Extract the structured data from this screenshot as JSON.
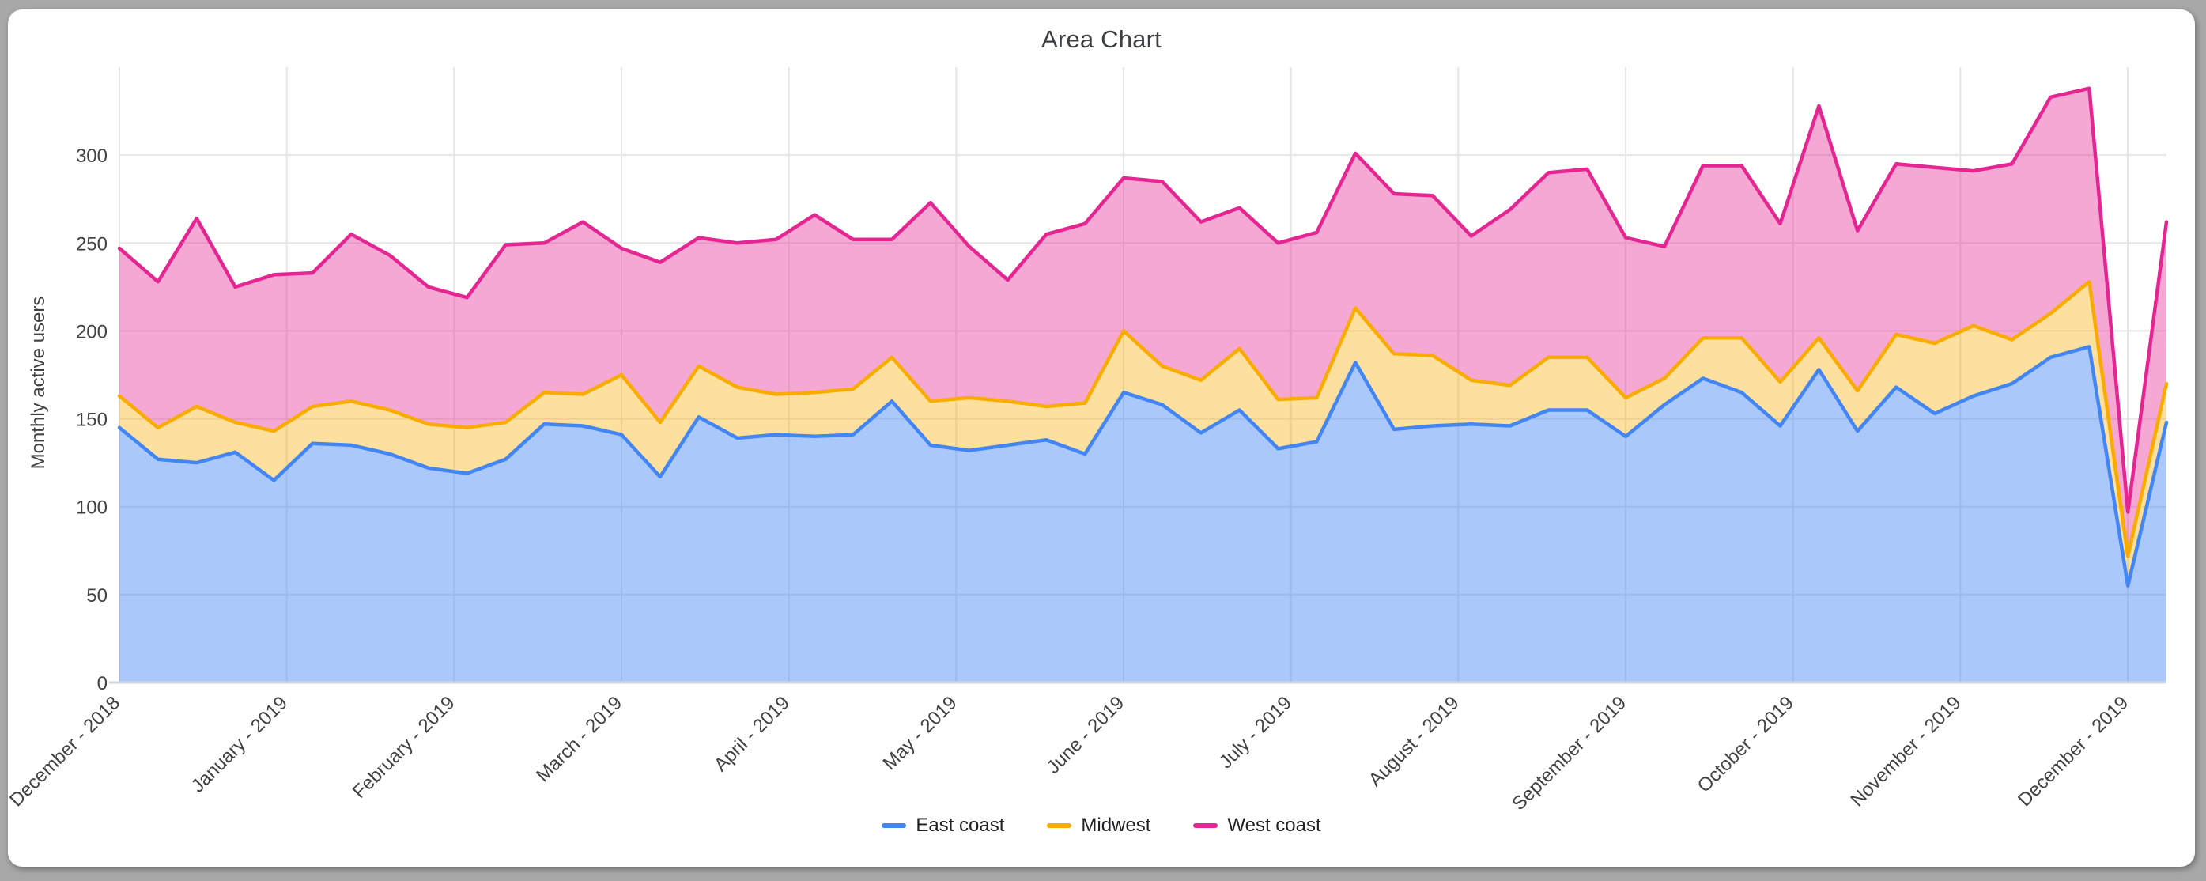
{
  "window": {
    "background_color": "#a8a8a8",
    "card_color": "#ffffff"
  },
  "chart_data": {
    "type": "area",
    "stacked": true,
    "title": "Area Chart",
    "xlabel": "",
    "ylabel": "Monthly active users",
    "grid": true,
    "legend_position": "bottom-center",
    "ylim": [
      0,
      350
    ],
    "yticks": [
      0,
      50,
      100,
      150,
      200,
      250,
      300
    ],
    "x_tick_labels": [
      "December - 2018",
      "January - 2019",
      "February - 2019",
      "March - 2019",
      "April - 2019",
      "May - 2019",
      "June - 2019",
      "July - 2019",
      "August - 2019",
      "September - 2019",
      "October - 2019",
      "November - 2019",
      "December - 2019"
    ],
    "points_per_week": true,
    "series": [
      {
        "name": "East coast",
        "color": "#4285F4",
        "fill_opacity": 0.45,
        "values": [
          145,
          127,
          125,
          131,
          115,
          136,
          135,
          130,
          122,
          119,
          127,
          147,
          146,
          141,
          117,
          151,
          139,
          141,
          140,
          141,
          160,
          135,
          132,
          135,
          138,
          130,
          165,
          158,
          142,
          155,
          133,
          137,
          182,
          144,
          146,
          147,
          146,
          155,
          155,
          140,
          158,
          173,
          165,
          146,
          178,
          143,
          168,
          153,
          163,
          170,
          185,
          191,
          55,
          148
        ]
      },
      {
        "name": "Midwest",
        "color": "#F9AB00",
        "fill_opacity": 0.38,
        "values": [
          18,
          18,
          32,
          17,
          28,
          21,
          25,
          25,
          25,
          26,
          21,
          18,
          18,
          34,
          31,
          29,
          29,
          23,
          25,
          26,
          25,
          25,
          30,
          25,
          19,
          29,
          35,
          22,
          30,
          35,
          28,
          25,
          31,
          43,
          40,
          25,
          23,
          30,
          30,
          22,
          15,
          23,
          31,
          25,
          18,
          23,
          30,
          40,
          40,
          25,
          25,
          37,
          17,
          22
        ]
      },
      {
        "name": "West coast",
        "color": "#E52592",
        "fill_opacity": 0.4,
        "values": [
          84,
          83,
          107,
          77,
          89,
          76,
          95,
          88,
          78,
          74,
          101,
          85,
          98,
          72,
          91,
          73,
          82,
          88,
          101,
          85,
          67,
          113,
          86,
          69,
          98,
          102,
          87,
          105,
          90,
          80,
          89,
          94,
          88,
          91,
          91,
          82,
          100,
          105,
          107,
          91,
          75,
          98,
          98,
          90,
          132,
          91,
          97,
          100,
          88,
          100,
          123,
          110,
          25,
          92
        ]
      }
    ],
    "style": {
      "grid_color": "#e6e6e6",
      "axis_line_color": "#cdd7e8",
      "tick_label_color": "#424242",
      "axis_title_color": "#424242",
      "title_color": "#3c4043",
      "line_width": 4.5
    }
  }
}
